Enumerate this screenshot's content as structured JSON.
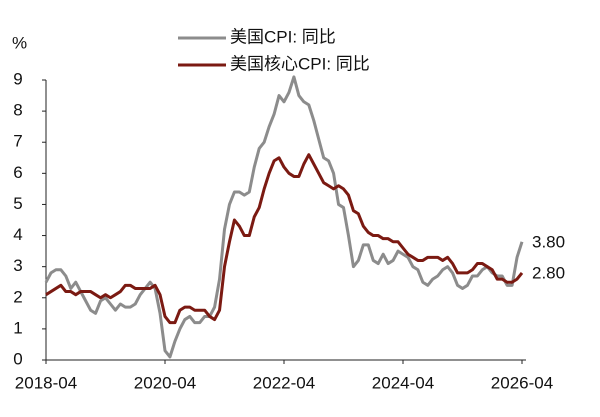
{
  "chart_data": {
    "type": "line",
    "y_unit": "%",
    "x": [
      "2018-04",
      "2018-05",
      "2018-06",
      "2018-07",
      "2018-08",
      "2018-09",
      "2018-10",
      "2018-11",
      "2018-12",
      "2019-01",
      "2019-02",
      "2019-03",
      "2019-04",
      "2019-05",
      "2019-06",
      "2019-07",
      "2019-08",
      "2019-09",
      "2019-10",
      "2019-11",
      "2019-12",
      "2020-01",
      "2020-02",
      "2020-03",
      "2020-04",
      "2020-05",
      "2020-06",
      "2020-07",
      "2020-08",
      "2020-09",
      "2020-10",
      "2020-11",
      "2020-12",
      "2021-01",
      "2021-02",
      "2021-03",
      "2021-04",
      "2021-05",
      "2021-06",
      "2021-07",
      "2021-08",
      "2021-09",
      "2021-10",
      "2021-11",
      "2021-12",
      "2022-01",
      "2022-02",
      "2022-03",
      "2022-04",
      "2022-05",
      "2022-06",
      "2022-07",
      "2022-08",
      "2022-09",
      "2022-10",
      "2022-11",
      "2022-12",
      "2023-01",
      "2023-02",
      "2023-03",
      "2023-04",
      "2023-05",
      "2023-06",
      "2023-07",
      "2023-08",
      "2023-09",
      "2023-10",
      "2023-11",
      "2023-12",
      "2024-01",
      "2024-02",
      "2024-03",
      "2024-04",
      "2024-05",
      "2024-06",
      "2024-07",
      "2024-08",
      "2024-09",
      "2024-10",
      "2024-11",
      "2024-12",
      "2025-01",
      "2025-02",
      "2025-03",
      "2025-04",
      "2025-05",
      "2025-06",
      "2025-07",
      "2025-08",
      "2025-09",
      "2025-10",
      "2025-11",
      "2025-12",
      "2026-01",
      "2026-02",
      "2026-03",
      "2026-04"
    ],
    "series": [
      {
        "name": "美国CPI: 同比",
        "color": "#8c8c8c",
        "values": [
          2.5,
          2.8,
          2.9,
          2.9,
          2.7,
          2.3,
          2.5,
          2.2,
          1.9,
          1.6,
          1.5,
          1.9,
          2.0,
          1.8,
          1.6,
          1.8,
          1.7,
          1.7,
          1.8,
          2.1,
          2.3,
          2.5,
          2.3,
          1.5,
          0.3,
          0.1,
          0.6,
          1.0,
          1.3,
          1.4,
          1.2,
          1.2,
          1.4,
          1.4,
          1.7,
          2.6,
          4.2,
          5.0,
          5.4,
          5.4,
          5.3,
          5.4,
          6.2,
          6.8,
          7.0,
          7.5,
          7.9,
          8.5,
          8.3,
          8.6,
          9.1,
          8.5,
          8.3,
          8.2,
          7.7,
          7.1,
          6.5,
          6.4,
          6.0,
          5.0,
          4.9,
          4.0,
          3.0,
          3.2,
          3.7,
          3.7,
          3.2,
          3.1,
          3.4,
          3.1,
          3.2,
          3.5,
          3.4,
          3.3,
          3.0,
          2.9,
          2.5,
          2.4,
          2.6,
          2.7,
          2.9,
          3.0,
          2.8,
          2.4,
          2.3,
          2.4,
          2.7,
          2.7,
          2.9,
          3.0,
          2.8,
          2.7,
          2.7,
          2.4,
          2.4,
          3.3,
          3.8
        ],
        "value_labels": [
          null,
          null,
          null,
          null,
          null,
          null,
          null,
          null,
          null,
          null,
          null,
          null,
          null,
          null,
          null,
          null,
          null,
          null,
          null,
          null,
          null,
          null,
          null,
          null,
          null,
          null,
          null,
          null,
          null,
          null,
          null,
          null,
          null,
          null,
          null,
          null,
          null,
          null,
          null,
          null,
          null,
          null,
          null,
          null,
          null,
          null,
          null,
          null,
          null,
          null,
          null,
          null,
          null,
          null,
          null,
          null,
          null,
          null,
          null,
          null,
          null,
          null,
          null,
          null,
          null,
          null,
          null,
          null,
          null,
          null,
          null,
          null,
          null,
          null,
          null,
          null,
          null,
          null,
          null,
          null,
          null,
          null,
          null,
          null,
          null,
          null,
          null,
          null,
          null,
          null,
          null,
          null,
          null,
          null,
          null,
          null,
          "3.80"
        ]
      },
      {
        "name": "美国核心CPI: 同比",
        "color": "#7b1a12",
        "values": [
          2.1,
          2.2,
          2.3,
          2.4,
          2.2,
          2.2,
          2.1,
          2.2,
          2.2,
          2.2,
          2.1,
          2.0,
          2.1,
          2.0,
          2.1,
          2.2,
          2.4,
          2.4,
          2.3,
          2.3,
          2.3,
          2.3,
          2.4,
          2.1,
          1.4,
          1.2,
          1.2,
          1.6,
          1.7,
          1.7,
          1.6,
          1.6,
          1.6,
          1.4,
          1.3,
          1.6,
          3.0,
          3.8,
          4.5,
          4.3,
          4.0,
          4.0,
          4.6,
          4.9,
          5.5,
          6.0,
          6.4,
          6.5,
          6.2,
          6.0,
          5.9,
          5.9,
          6.3,
          6.6,
          6.3,
          6.0,
          5.7,
          5.6,
          5.5,
          5.6,
          5.5,
          5.3,
          4.8,
          4.7,
          4.3,
          4.1,
          4.0,
          4.0,
          3.9,
          3.9,
          3.8,
          3.8,
          3.6,
          3.4,
          3.3,
          3.2,
          3.2,
          3.3,
          3.3,
          3.3,
          3.2,
          3.3,
          3.1,
          2.8,
          2.8,
          2.8,
          2.9,
          3.1,
          3.1,
          3.0,
          2.9,
          2.6,
          2.6,
          2.5,
          2.5,
          2.6,
          2.8
        ],
        "value_labels": [
          null,
          null,
          null,
          null,
          null,
          null,
          null,
          null,
          null,
          null,
          null,
          null,
          null,
          null,
          null,
          null,
          null,
          null,
          null,
          null,
          null,
          null,
          null,
          null,
          null,
          null,
          null,
          null,
          null,
          null,
          null,
          null,
          null,
          null,
          null,
          null,
          null,
          null,
          null,
          null,
          null,
          null,
          null,
          null,
          null,
          null,
          null,
          null,
          null,
          null,
          null,
          null,
          null,
          null,
          null,
          null,
          null,
          null,
          null,
          null,
          null,
          null,
          null,
          null,
          null,
          null,
          null,
          null,
          null,
          null,
          null,
          null,
          null,
          null,
          null,
          null,
          null,
          null,
          null,
          null,
          null,
          null,
          null,
          null,
          null,
          null,
          null,
          null,
          null,
          null,
          null,
          null,
          null,
          null,
          null,
          null,
          "2.80"
        ]
      }
    ],
    "xlim": [
      "2018-04",
      "2026-04"
    ],
    "xticks": [
      "2018-04",
      "2020-04",
      "2022-04",
      "2024-04",
      "2026-04"
    ],
    "ylim": [
      0,
      9
    ],
    "yticks": [
      0,
      1,
      2,
      3,
      4,
      5,
      6,
      7,
      8,
      9
    ],
    "grid": false,
    "legend": "top"
  }
}
